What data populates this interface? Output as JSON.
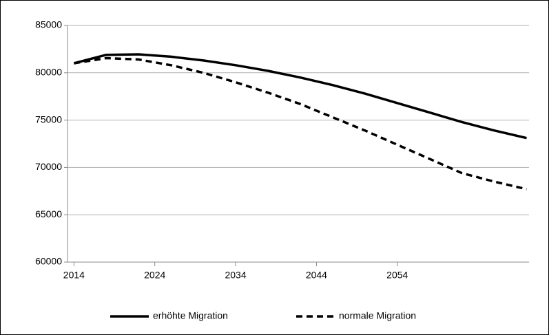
{
  "chart_data": {
    "type": "line",
    "x": [
      2014,
      2018,
      2022,
      2026,
      2030,
      2034,
      2038,
      2042,
      2046,
      2050,
      2054,
      2058,
      2062,
      2066,
      2070
    ],
    "series": [
      {
        "name": "erhöhte Migration",
        "color": "#000000",
        "dash": "solid",
        "values": [
          81000,
          81900,
          81950,
          81700,
          81300,
          80800,
          80200,
          79500,
          78700,
          77800,
          76800,
          75800,
          74800,
          73900,
          73100
        ]
      },
      {
        "name": "normale Migration",
        "color": "#000000",
        "dash": "dashed",
        "values": [
          81000,
          81550,
          81400,
          80800,
          80000,
          79000,
          77900,
          76700,
          75300,
          73900,
          72400,
          70900,
          69400,
          68500,
          67700
        ]
      }
    ],
    "xlim": [
      2013.2,
      2070.3
    ],
    "xticks": [
      2014,
      2024,
      2034,
      2044,
      2054
    ],
    "ylim": [
      60000,
      85000
    ],
    "yticks": [
      60000,
      65000,
      70000,
      75000,
      80000,
      85000
    ],
    "grid": true,
    "legend": "bottom"
  }
}
